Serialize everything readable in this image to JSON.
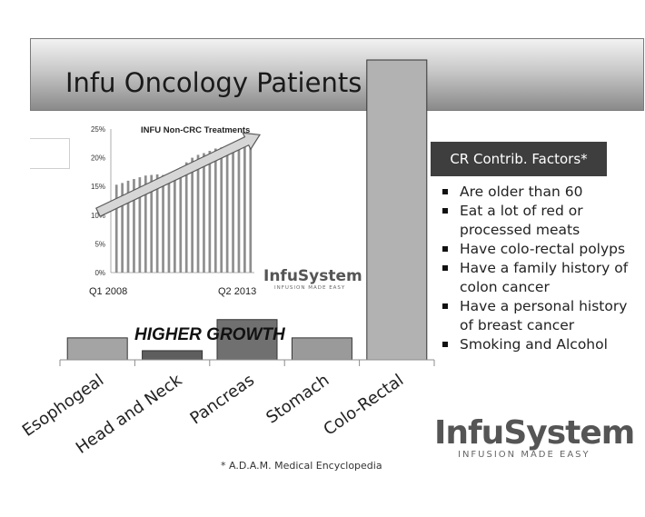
{
  "title": "Infu Oncology Patients",
  "chart_data": [
    {
      "type": "bar",
      "categories": [
        "Esophogeal",
        "Head and Neck",
        "Pancreas",
        "Stomach",
        "Colo-Rectal"
      ],
      "values": [
        6,
        2.5,
        11,
        6,
        82
      ],
      "ylim": [
        0,
        82
      ],
      "xlabel": "",
      "ylabel": "",
      "annotation": "HIGHER GROWTH",
      "colors": [
        "#a4a4a4",
        "#5e5e5e",
        "#707070",
        "#9a9a9a",
        "#b2b2b2"
      ]
    },
    {
      "type": "bar",
      "title": "INFU Non-CRC Treatments",
      "y_ticks": [
        "0%",
        "5%",
        "10%",
        "15%",
        "20%",
        "25%"
      ],
      "ylim": [
        0,
        25
      ],
      "x_start_label": "Q1 2008",
      "x_end_label": "Q2 2013",
      "values": [
        15.3,
        15.6,
        16.0,
        16.3,
        16.6,
        16.9,
        17.0,
        17.1,
        17.0,
        17.2,
        17.6,
        18.3,
        19.2,
        20.0,
        20.5,
        20.8,
        21.2,
        21.6,
        21.8,
        22.1,
        22.6,
        23.0,
        23.1,
        22.8
      ],
      "trend": "up"
    }
  ],
  "factors": {
    "heading": "CR Contrib. Factors*",
    "items": [
      "Are older than 60",
      "Eat a lot of red or processed meats",
      "Have colo-rectal polyps",
      "Have a family history of colon cancer",
      "Have a personal history of breast cancer",
      "Smoking and Alcohol"
    ]
  },
  "footnote": "* A.D.A.M. Medical Encyclopedia",
  "logo": {
    "word": "InfuSystem",
    "tagline": "INFUSION MADE EASY"
  }
}
